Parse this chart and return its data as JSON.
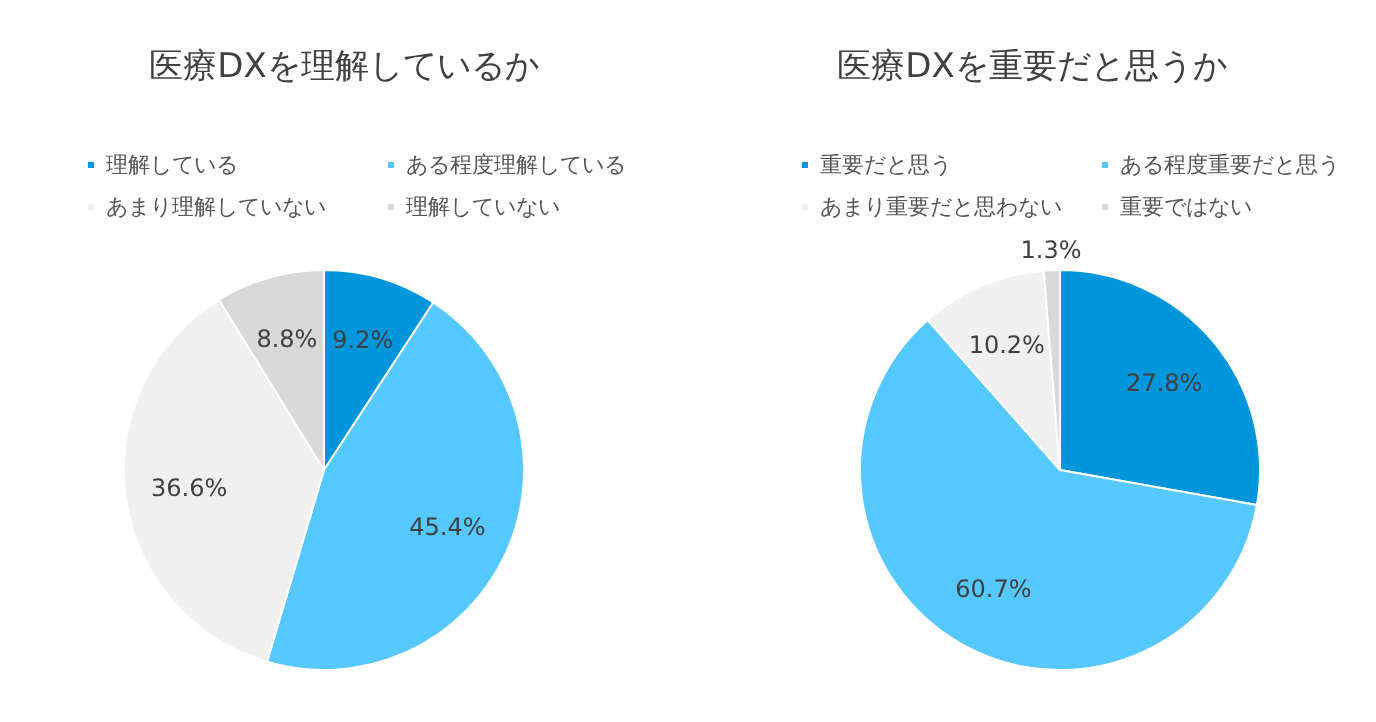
{
  "chart_data": [
    {
      "type": "pie",
      "title": "医療DXを理解しているか",
      "categories": [
        "理解している",
        "ある程度理解している",
        "あまり理解していない",
        "理解していない"
      ],
      "values": [
        9.2,
        45.4,
        36.6,
        8.8
      ],
      "value_labels": [
        "9.2%",
        "45.4%",
        "36.6%",
        "8.8%"
      ],
      "colors": [
        "#0096dc",
        "#55c8ff",
        "#f0f0f0",
        "#d9d9d9"
      ],
      "legend": "top"
    },
    {
      "type": "pie",
      "title": "医療DXを重要だと思うか",
      "categories": [
        "重要だと思う",
        "ある程度重要だと思う",
        "あまり重要だと思わない",
        "重要ではない"
      ],
      "values": [
        27.8,
        60.7,
        10.2,
        1.3
      ],
      "value_labels": [
        "27.8%",
        "60.7%",
        "10.2%",
        "1.3%"
      ],
      "colors": [
        "#0096dc",
        "#55c8ff",
        "#f0f0f0",
        "#d9d9d9"
      ],
      "legend": "top"
    }
  ]
}
